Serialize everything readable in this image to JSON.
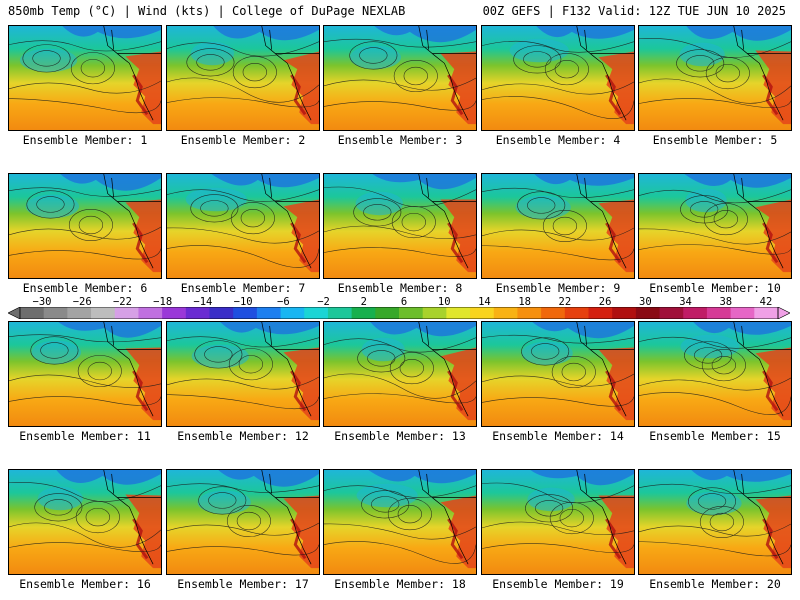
{
  "header": {
    "left": "850mb Temp (°C) | Wind (kts) | College of DuPage NEXLAB",
    "right": "00Z GEFS | F132 Valid: 12Z TUE JUN 10 2025"
  },
  "colorbar": {
    "labels": [
      "−30",
      "−26",
      "−22",
      "−18",
      "−14",
      "−10",
      "−6",
      "−2",
      "2",
      "6",
      "10",
      "14",
      "18",
      "22",
      "26",
      "30",
      "34",
      "38",
      "42"
    ],
    "colors": [
      "#6e6e6e",
      "#8a8a8a",
      "#a3a3a3",
      "#bdbdbd",
      "#d6a0e6",
      "#c070e0",
      "#9a38d8",
      "#6a2bd2",
      "#3a2ec8",
      "#1f4fe0",
      "#1d7fef",
      "#19b6f2",
      "#1bd5d5",
      "#1cc79a",
      "#17b04e",
      "#37a82a",
      "#6cbe2b",
      "#a8d22c",
      "#e0e62c",
      "#f8d41e",
      "#f8b214",
      "#f6900e",
      "#f0680c",
      "#e6400e",
      "#d42010",
      "#b01010",
      "#8a0a14",
      "#a0103a",
      "#c01c66",
      "#d63a96",
      "#e666c6",
      "#f0a0e6"
    ]
  },
  "members": [
    {
      "label": "Ensemble Member: 1"
    },
    {
      "label": "Ensemble Member: 2"
    },
    {
      "label": "Ensemble Member: 3"
    },
    {
      "label": "Ensemble Member: 4"
    },
    {
      "label": "Ensemble Member: 5"
    },
    {
      "label": "Ensemble Member: 6"
    },
    {
      "label": "Ensemble Member: 7"
    },
    {
      "label": "Ensemble Member: 8"
    },
    {
      "label": "Ensemble Member: 9"
    },
    {
      "label": "Ensemble Member: 10"
    },
    {
      "label": "Ensemble Member: 11"
    },
    {
      "label": "Ensemble Member: 12"
    },
    {
      "label": "Ensemble Member: 13"
    },
    {
      "label": "Ensemble Member: 14"
    },
    {
      "label": "Ensemble Member: 15"
    },
    {
      "label": "Ensemble Member: 16"
    },
    {
      "label": "Ensemble Member: 17"
    },
    {
      "label": "Ensemble Member: 18"
    },
    {
      "label": "Ensemble Member: 19"
    },
    {
      "label": "Ensemble Member: 20"
    }
  ]
}
